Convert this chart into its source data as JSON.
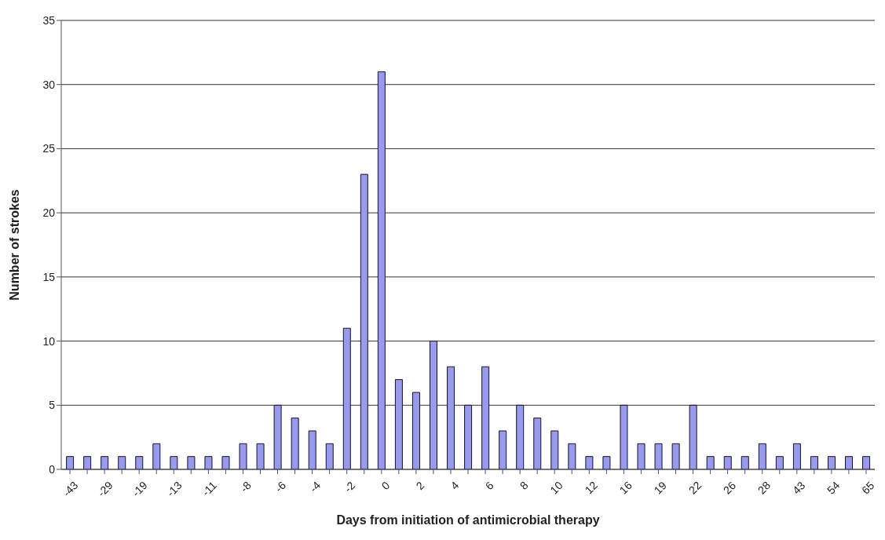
{
  "chart_data": {
    "type": "bar",
    "xlabel": "Days from initiation of antimicrobial therapy",
    "ylabel": "Number of strokes",
    "categories": [
      "-43",
      null,
      "-29",
      null,
      "-19",
      null,
      "-13",
      null,
      "-11",
      null,
      "-8",
      null,
      "-6",
      null,
      "-4",
      null,
      "-2",
      null,
      "0",
      null,
      "2",
      null,
      "4",
      null,
      "6",
      null,
      "8",
      null,
      "10",
      null,
      "12",
      null,
      "16",
      null,
      "19",
      null,
      "22",
      null,
      "26",
      null,
      "28",
      null,
      "43",
      null,
      "54",
      null,
      "65"
    ],
    "values": [
      1,
      1,
      1,
      1,
      1,
      2,
      1,
      1,
      1,
      1,
      2,
      2,
      5,
      4,
      3,
      2,
      11,
      23,
      31,
      7,
      6,
      10,
      8,
      5,
      8,
      3,
      5,
      4,
      3,
      2,
      1,
      1,
      5,
      2,
      2,
      2,
      5,
      1,
      1,
      1,
      2,
      1,
      2,
      1,
      1,
      1,
      1
    ],
    "color": "#9999ee",
    "ylim": [
      0,
      35
    ],
    "yticks": [
      0,
      5,
      10,
      15,
      20,
      25,
      30,
      35
    ],
    "grid": "y"
  }
}
